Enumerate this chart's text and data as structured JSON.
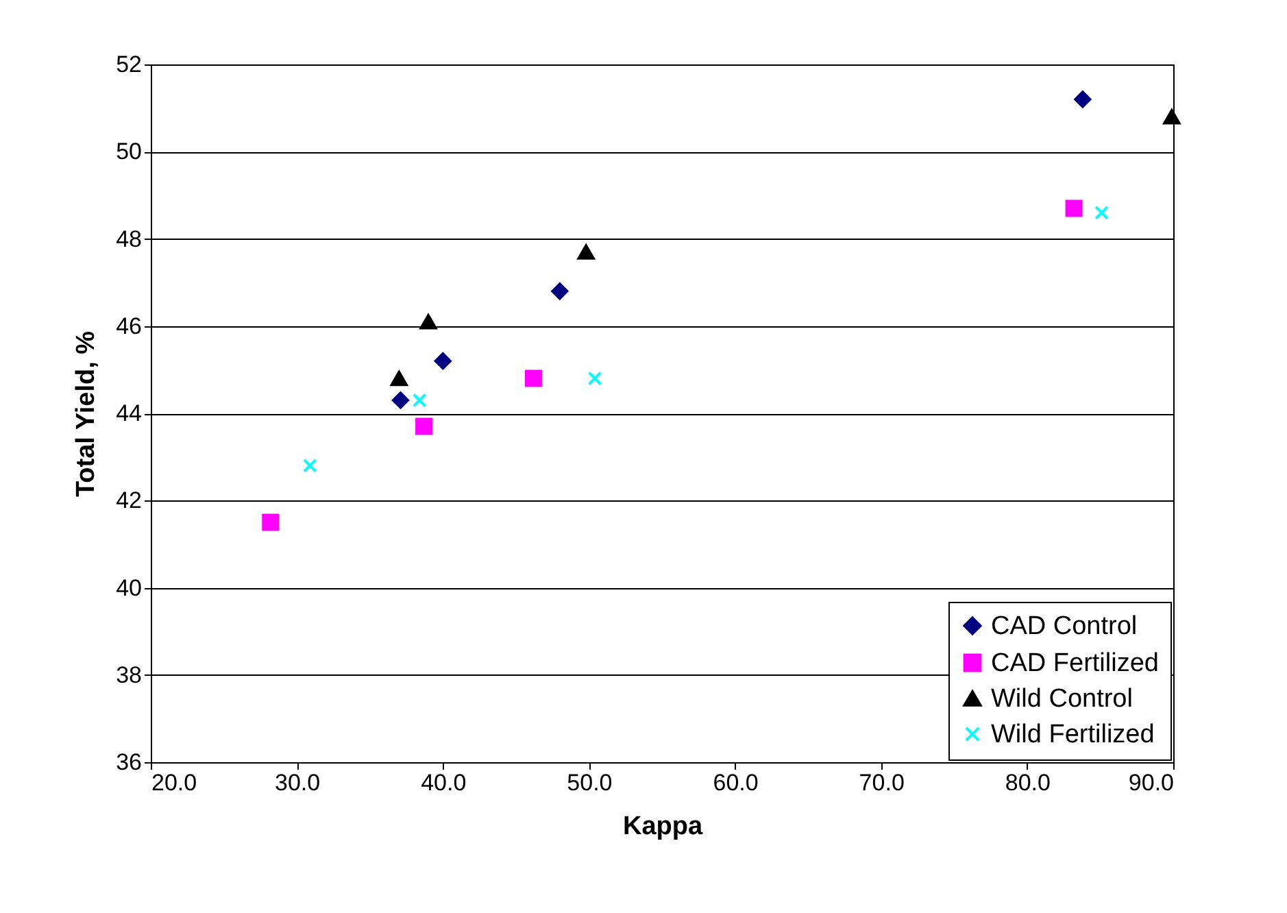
{
  "chart_data": {
    "type": "scatter",
    "xlabel": "Kappa",
    "ylabel": "Total Yield, %",
    "xlim": [
      20,
      90
    ],
    "xticks": [
      {
        "value": 20,
        "label": "20.0"
      },
      {
        "value": 30,
        "label": "30.0"
      },
      {
        "value": 40,
        "label": "40.0"
      },
      {
        "value": 50,
        "label": "50.0"
      },
      {
        "value": 60,
        "label": "60.0"
      },
      {
        "value": 70,
        "label": "70.0"
      },
      {
        "value": 80,
        "label": "80.0"
      },
      {
        "value": 90,
        "label": "90.0"
      }
    ],
    "ylim": [
      36,
      52
    ],
    "yticks": [
      36,
      38,
      40,
      42,
      44,
      46,
      48,
      50,
      52
    ],
    "grid": "y",
    "legend": "bottom right",
    "series": [
      {
        "name": "CAD Control",
        "color": "#000080",
        "marker": "diamond",
        "x": [
          37.1,
          40.0,
          48.0,
          83.8
        ],
        "values": [
          44.3,
          45.2,
          46.8,
          51.2
        ]
      },
      {
        "name": "CAD Fertilized",
        "color": "#ff00ff",
        "marker": "square",
        "x": [
          28.2,
          38.7,
          46.2,
          83.2
        ],
        "values": [
          41.5,
          43.7,
          44.8,
          48.7
        ]
      },
      {
        "name": "Wild Control",
        "color": "#000000",
        "marker": "triangle",
        "x": [
          37.0,
          39.0,
          49.8,
          89.9
        ],
        "values": [
          44.8,
          46.1,
          47.7,
          50.8
        ]
      },
      {
        "name": "Wild Fertilized",
        "color": "#00ffff",
        "marker": "cross",
        "x": [
          30.9,
          38.4,
          50.4,
          85.1
        ],
        "values": [
          42.8,
          44.3,
          44.8,
          48.6
        ]
      }
    ]
  }
}
